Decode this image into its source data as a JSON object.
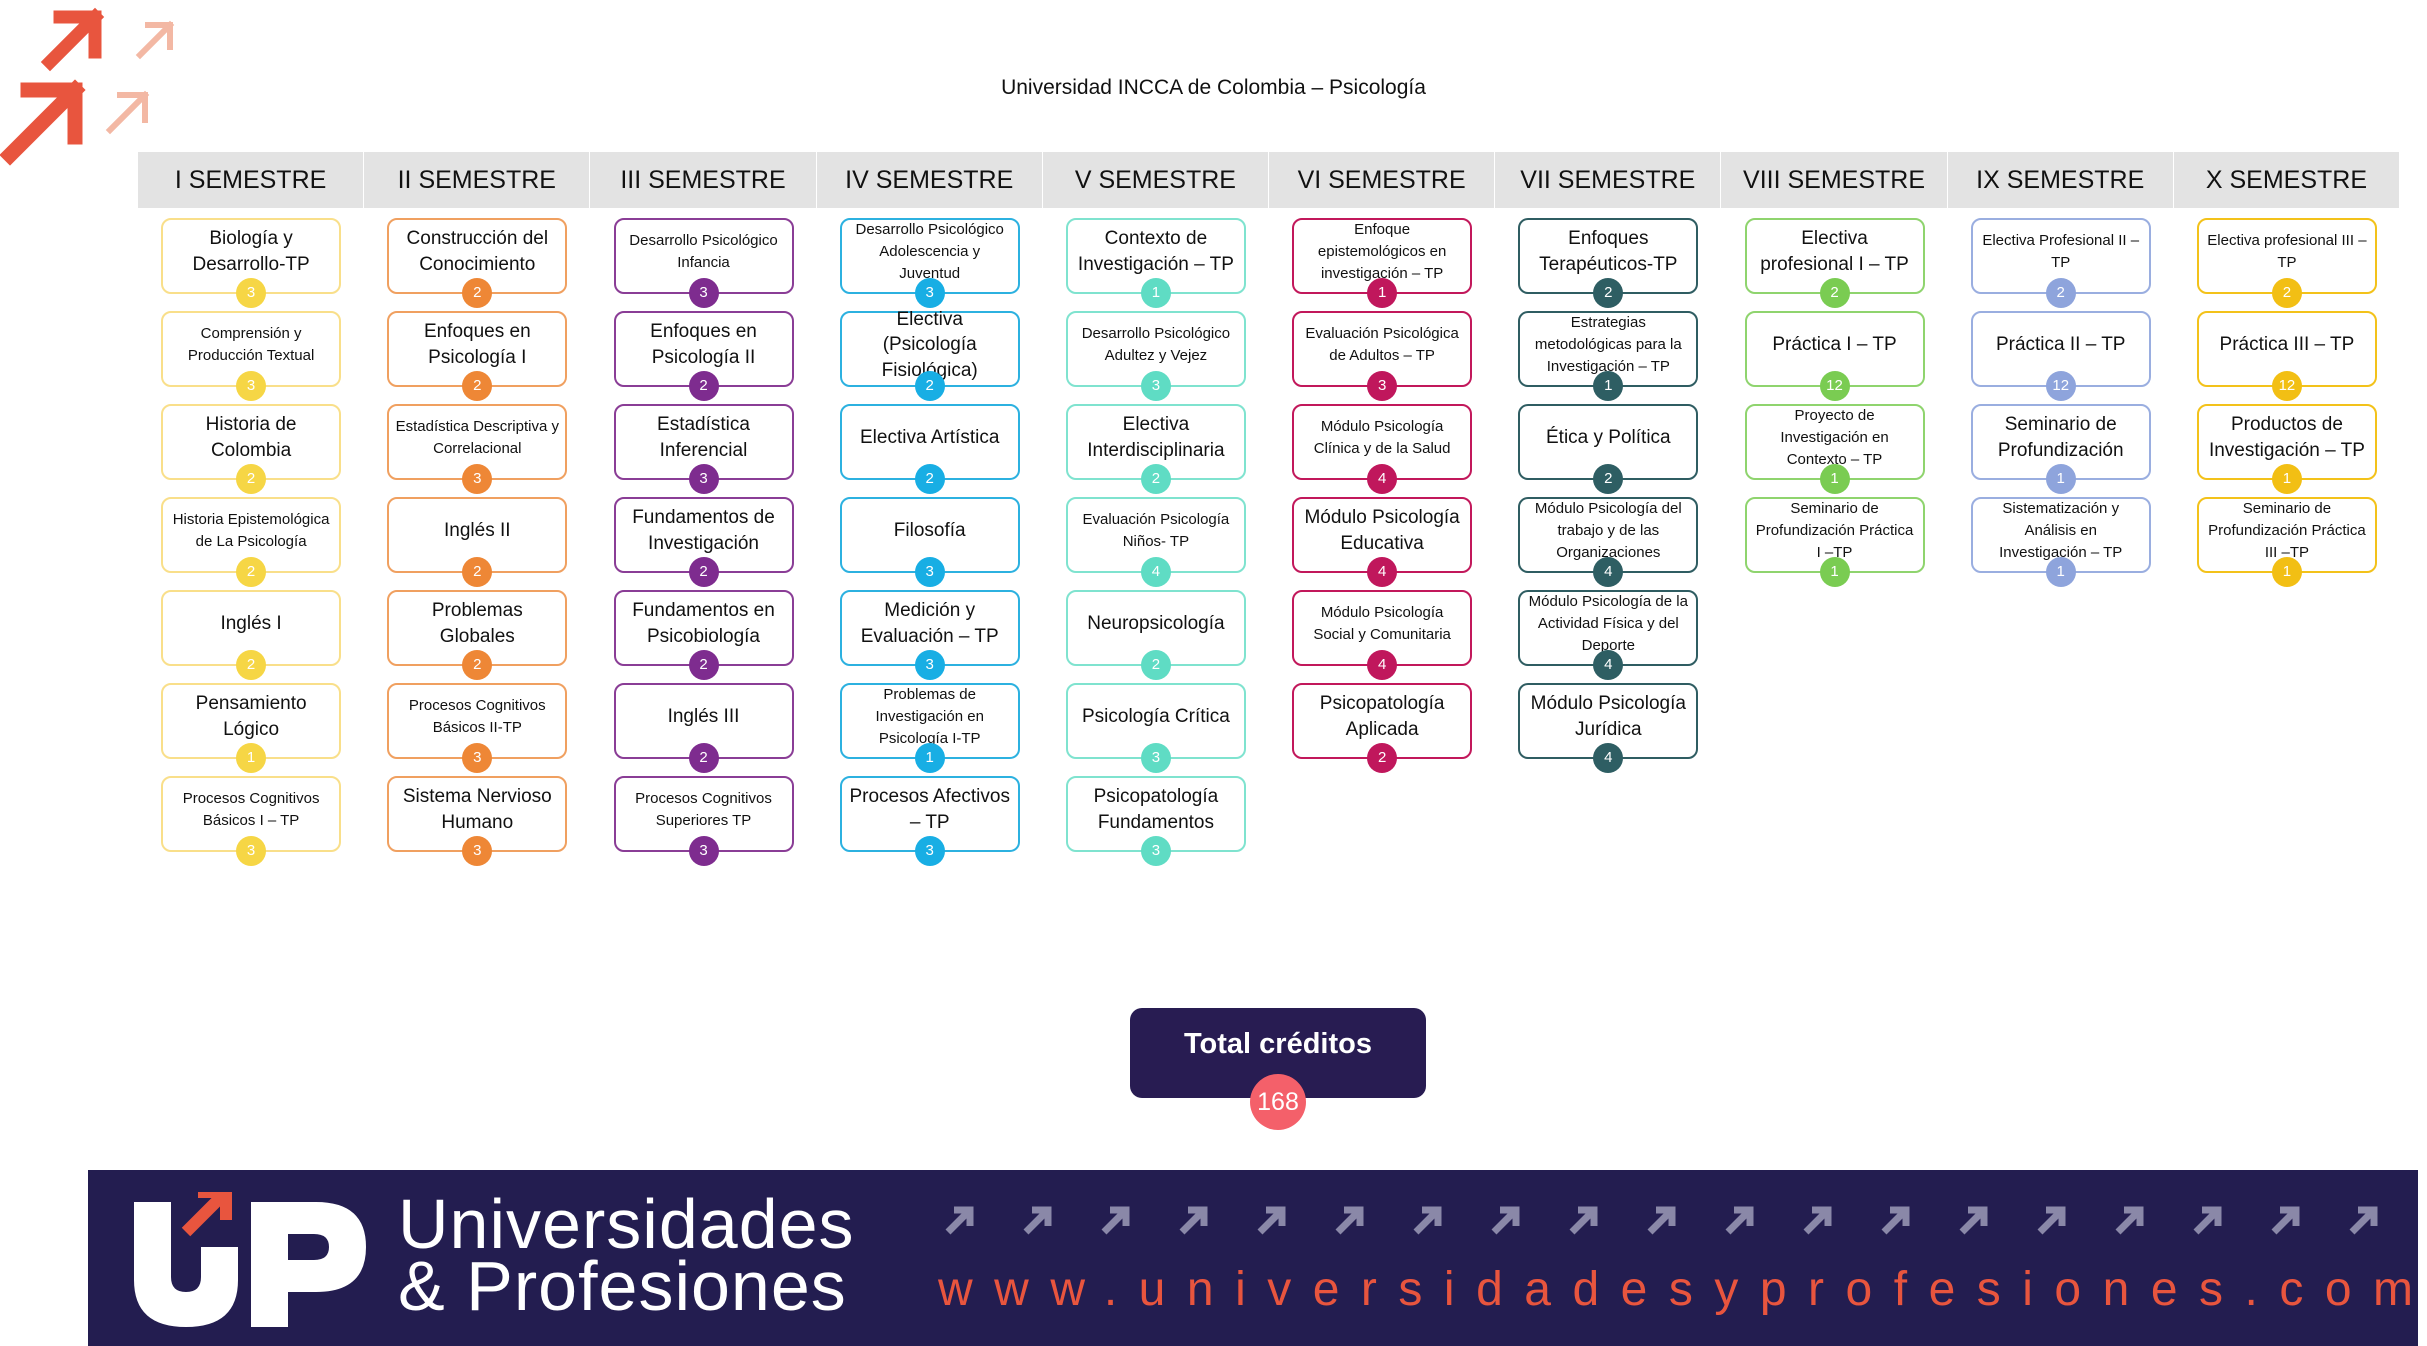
{
  "title": "Universidad INCCA de Colombia – Psicología",
  "colors": {
    "header_bg": "#e3e3e3",
    "total_box": "#281c52",
    "total_badge": "#f4606a",
    "footer_bg": "#231d50",
    "accent_orange": "#e8553e"
  },
  "semesters": [
    {
      "name": "I SEMESTRE",
      "border": "#f9df8a",
      "badge": "#f6d645",
      "courses": [
        {
          "name": "Biología y Desarrollo-TP",
          "credits": "3",
          "small": false
        },
        {
          "name": "Comprensión y Producción Textual",
          "credits": "3",
          "small": true
        },
        {
          "name": "Historia de Colombia",
          "credits": "2",
          "small": false
        },
        {
          "name": "Historia Epistemológica de La Psicología",
          "credits": "2",
          "small": true
        },
        {
          "name": "Inglés I",
          "credits": "2",
          "small": false
        },
        {
          "name": "Pensamiento Lógico",
          "credits": "1",
          "small": false
        },
        {
          "name": "Procesos Cognitivos Básicos I – TP",
          "credits": "3",
          "small": true
        }
      ]
    },
    {
      "name": "II SEMESTRE",
      "border": "#f0a060",
      "badge": "#ee8736",
      "courses": [
        {
          "name": "Construcción del Conocimiento",
          "credits": "2",
          "small": false
        },
        {
          "name": "Enfoques en Psicología I",
          "credits": "2",
          "small": false
        },
        {
          "name": "Estadística Descriptiva y Correlacional",
          "credits": "3",
          "small": true
        },
        {
          "name": "Inglés II",
          "credits": "2",
          "small": false
        },
        {
          "name": "Problemas Globales",
          "credits": "2",
          "small": false
        },
        {
          "name": "Procesos Cognitivos Básicos II-TP",
          "credits": "3",
          "small": true
        },
        {
          "name": "Sistema Nervioso Humano",
          "credits": "3",
          "small": false
        }
      ]
    },
    {
      "name": "III SEMESTRE",
      "border": "#8a3d96",
      "badge": "#7e2c8f",
      "courses": [
        {
          "name": "Desarrollo Psicológico Infancia",
          "credits": "3",
          "small": true
        },
        {
          "name": "Enfoques en Psicología II",
          "credits": "2",
          "small": false
        },
        {
          "name": "Estadística Inferencial",
          "credits": "3",
          "small": false
        },
        {
          "name": "Fundamentos de Investigación",
          "credits": "2",
          "small": false
        },
        {
          "name": "Fundamentos en Psicobiología",
          "credits": "2",
          "small": false
        },
        {
          "name": "Inglés III",
          "credits": "2",
          "small": false
        },
        {
          "name": "Procesos Cognitivos Superiores TP",
          "credits": "3",
          "small": true
        }
      ]
    },
    {
      "name": "IV SEMESTRE",
      "border": "#2cb1e0",
      "badge": "#18aee4",
      "courses": [
        {
          "name": "Desarrollo Psicológico Adolescencia y Juventud",
          "credits": "3",
          "small": true
        },
        {
          "name": "Electiva (Psicología Fisiológica)",
          "credits": "2",
          "small": false
        },
        {
          "name": "Electiva Artística",
          "credits": "2",
          "small": false
        },
        {
          "name": "Filosofía",
          "credits": "3",
          "small": false
        },
        {
          "name": "Medición y Evaluación – TP",
          "credits": "3",
          "small": false
        },
        {
          "name": "Problemas de Investigación en Psicología I-TP",
          "credits": "1",
          "small": true
        },
        {
          "name": "Procesos Afectivos – TP",
          "credits": "3",
          "small": false
        }
      ]
    },
    {
      "name": "V SEMESTRE",
      "border": "#7fe3cf",
      "badge": "#5fdcc4",
      "courses": [
        {
          "name": "Contexto de Investigación – TP",
          "credits": "1",
          "small": false
        },
        {
          "name": "Desarrollo Psicológico Adultez y Vejez",
          "credits": "3",
          "small": true
        },
        {
          "name": "Electiva Interdisciplinaria",
          "credits": "2",
          "small": false
        },
        {
          "name": "Evaluación Psicología Niños- TP",
          "credits": "4",
          "small": true
        },
        {
          "name": "Neuropsicología",
          "credits": "2",
          "small": false
        },
        {
          "name": "Psicología Crítica",
          "credits": "3",
          "small": false
        },
        {
          "name": "Psicopatología Fundamentos",
          "credits": "3",
          "small": false
        }
      ]
    },
    {
      "name": "VI SEMESTRE",
      "border": "#c2185b",
      "badge": "#c0175c",
      "courses": [
        {
          "name": "Enfoque epistemológicos en investigación – TP",
          "credits": "1",
          "small": true
        },
        {
          "name": "Evaluación Psicológica de Adultos – TP",
          "credits": "3",
          "small": true
        },
        {
          "name": "Módulo Psicología Clínica y de la Salud",
          "credits": "4",
          "small": true
        },
        {
          "name": "Módulo Psicología Educativa",
          "credits": "4",
          "small": false
        },
        {
          "name": "Módulo Psicología Social y Comunitaria",
          "credits": "4",
          "small": true
        },
        {
          "name": "Psicopatología Aplicada",
          "credits": "2",
          "small": false
        }
      ]
    },
    {
      "name": "VII SEMESTRE",
      "border": "#2f5d62",
      "badge": "#2e5e63",
      "courses": [
        {
          "name": "Enfoques Terapéuticos-TP",
          "credits": "2",
          "small": false
        },
        {
          "name": "Estrategias metodológicas para la Investigación – TP",
          "credits": "1",
          "small": true
        },
        {
          "name": "Ética y Política",
          "credits": "2",
          "small": false
        },
        {
          "name": "Módulo Psicología del trabajo y de las Organizaciones",
          "credits": "4",
          "small": true
        },
        {
          "name": "Módulo Psicología de la Actividad Física y del Deporte",
          "credits": "4",
          "small": true
        },
        {
          "name": "Módulo Psicología Jurídica",
          "credits": "4",
          "small": false
        }
      ]
    },
    {
      "name": "VIII SEMESTRE",
      "border": "#8fd46e",
      "badge": "#7acc52",
      "courses": [
        {
          "name": "Electiva profesional I – TP",
          "credits": "2",
          "small": false
        },
        {
          "name": "Práctica I – TP",
          "credits": "12",
          "small": false
        },
        {
          "name": "Proyecto de Investigación en Contexto – TP",
          "credits": "1",
          "small": true
        },
        {
          "name": "Seminario de Profundización Práctica I –TP",
          "credits": "1",
          "small": true
        }
      ]
    },
    {
      "name": "IX SEMESTRE",
      "border": "#9aaee0",
      "badge": "#8ea4dc",
      "courses": [
        {
          "name": "Electiva Profesional II – TP",
          "credits": "2",
          "small": true
        },
        {
          "name": "Práctica II – TP",
          "credits": "12",
          "small": false
        },
        {
          "name": "Seminario de Profundización",
          "credits": "1",
          "small": false
        },
        {
          "name": "Sistematización y Análisis en Investigación – TP",
          "credits": "1",
          "small": true
        }
      ]
    },
    {
      "name": "X SEMESTRE",
      "border": "#f3c21a",
      "badge": "#f2bf14",
      "courses": [
        {
          "name": "Electiva profesional III – TP",
          "credits": "2",
          "small": true
        },
        {
          "name": "Práctica III – TP",
          "credits": "12",
          "small": false
        },
        {
          "name": "Productos de Investigación – TP",
          "credits": "1",
          "small": false
        },
        {
          "name": "Seminario de Profundización Práctica III –TP",
          "credits": "1",
          "small": true
        }
      ]
    }
  ],
  "total": {
    "label": "Total créditos",
    "value": "168"
  },
  "footer": {
    "brand_line1": "Universidades",
    "brand_line2": "& Profesiones",
    "url": "www.universidadesyprofesiones.com"
  }
}
